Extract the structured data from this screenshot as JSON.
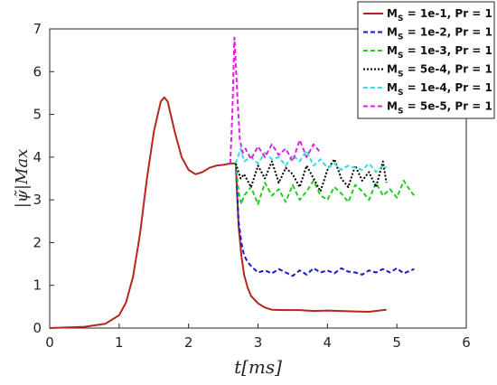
{
  "chart_data": {
    "type": "line",
    "xlabel": "t[ms]",
    "ylabel": "|ψ̃|Max",
    "xlim": [
      0,
      6
    ],
    "ylim": [
      0,
      7
    ],
    "xticks": [
      "0",
      "1",
      "2",
      "3",
      "4",
      "5",
      "6"
    ],
    "yticks": [
      "0",
      "1",
      "2",
      "3",
      "4",
      "5",
      "6",
      "7"
    ],
    "grid": false,
    "legend_position": "top-right",
    "common_curve": {
      "x": [
        0,
        0.5,
        0.8,
        1.0,
        1.1,
        1.2,
        1.3,
        1.4,
        1.5,
        1.6,
        1.65,
        1.7,
        1.8,
        1.9,
        2.0,
        2.1,
        2.2,
        2.3,
        2.4,
        2.5,
        2.6,
        2.68
      ],
      "y": [
        0.0,
        0.03,
        0.1,
        0.3,
        0.6,
        1.2,
        2.2,
        3.5,
        4.6,
        5.3,
        5.4,
        5.3,
        4.6,
        4.0,
        3.7,
        3.6,
        3.65,
        3.75,
        3.8,
        3.82,
        3.85,
        3.85
      ]
    },
    "series": [
      {
        "name_prefix": "M",
        "name_sub": "S",
        "name_rest": " = 1e-1, Pr = 1",
        "color": "#b5261e",
        "dash": "",
        "x": [
          2.68,
          2.72,
          2.76,
          2.8,
          2.85,
          2.9,
          3.0,
          3.1,
          3.2,
          3.4,
          3.6,
          3.8,
          4.0,
          4.2,
          4.4,
          4.6,
          4.8,
          4.85
        ],
        "y": [
          3.85,
          2.4,
          1.7,
          1.25,
          0.95,
          0.75,
          0.58,
          0.48,
          0.43,
          0.42,
          0.42,
          0.4,
          0.41,
          0.4,
          0.39,
          0.38,
          0.42,
          0.43
        ]
      },
      {
        "name_prefix": "M",
        "name_sub": "S",
        "name_rest": " = 1e-2, Pr = 1",
        "color": "#1a1acc",
        "dash": "5,3",
        "x": [
          2.68,
          2.72,
          2.76,
          2.8,
          2.85,
          2.9,
          3.0,
          3.1,
          3.2,
          3.3,
          3.4,
          3.5,
          3.6,
          3.7,
          3.8,
          3.9,
          4.0,
          4.1,
          4.2,
          4.3,
          4.4,
          4.5,
          4.6,
          4.7,
          4.8,
          4.9,
          5.0,
          5.1,
          5.2,
          5.25
        ],
        "y": [
          3.85,
          2.5,
          2.0,
          1.7,
          1.55,
          1.45,
          1.3,
          1.35,
          1.28,
          1.38,
          1.3,
          1.22,
          1.35,
          1.25,
          1.4,
          1.3,
          1.35,
          1.28,
          1.4,
          1.32,
          1.3,
          1.25,
          1.35,
          1.3,
          1.38,
          1.3,
          1.4,
          1.28,
          1.35,
          1.38
        ]
      },
      {
        "name_prefix": "M",
        "name_sub": "S",
        "name_rest": " = 1e-3, Pr = 1",
        "color": "#22cc22",
        "dash": "5,3",
        "x": [
          2.68,
          2.72,
          2.76,
          2.8,
          2.9,
          3.0,
          3.1,
          3.2,
          3.3,
          3.4,
          3.5,
          3.6,
          3.7,
          3.8,
          3.9,
          4.0,
          4.1,
          4.2,
          4.3,
          4.4,
          4.5,
          4.6,
          4.7,
          4.8,
          4.9,
          5.0,
          5.1,
          5.2,
          5.25
        ],
        "y": [
          3.85,
          3.2,
          2.9,
          3.1,
          3.3,
          2.9,
          3.4,
          3.1,
          3.25,
          2.95,
          3.35,
          3.0,
          3.2,
          3.45,
          3.1,
          3.0,
          3.3,
          3.15,
          2.95,
          3.35,
          3.2,
          3.0,
          3.4,
          3.1,
          3.25,
          3.05,
          3.45,
          3.2,
          3.1
        ]
      },
      {
        "name_prefix": "M",
        "name_sub": "S",
        "name_rest": " = 5e-4, Pr = 1",
        "color": "#000000",
        "dash": "2,2",
        "x": [
          2.68,
          2.75,
          2.8,
          2.9,
          3.0,
          3.1,
          3.2,
          3.3,
          3.4,
          3.5,
          3.6,
          3.7,
          3.8,
          3.9,
          4.0,
          4.1,
          4.2,
          4.3,
          4.4,
          4.5,
          4.6,
          4.7,
          4.8,
          4.85
        ],
        "y": [
          3.85,
          3.5,
          3.6,
          3.3,
          3.8,
          3.5,
          3.9,
          3.4,
          3.75,
          3.6,
          3.3,
          3.8,
          3.5,
          3.2,
          3.7,
          3.95,
          3.5,
          3.3,
          3.8,
          3.45,
          3.65,
          3.3,
          3.9,
          3.4
        ]
      },
      {
        "name_prefix": "M",
        "name_sub": "S",
        "name_rest": " = 1e-4, Pr = 1",
        "color": "#33dddd",
        "dash": "5,3",
        "x": [
          2.68,
          2.75,
          2.8,
          2.9,
          3.0,
          3.1,
          3.2,
          3.3,
          3.4,
          3.5,
          3.6,
          3.7,
          3.8,
          3.9,
          4.0,
          4.1,
          4.2,
          4.3,
          4.4,
          4.5,
          4.6,
          4.7,
          4.8,
          4.85
        ],
        "y": [
          3.85,
          4.2,
          3.9,
          4.0,
          3.85,
          4.1,
          3.95,
          4.0,
          3.8,
          4.05,
          3.9,
          4.15,
          3.8,
          3.95,
          3.75,
          3.85,
          3.7,
          3.8,
          3.75,
          3.7,
          3.85,
          3.65,
          3.8,
          3.75
        ]
      },
      {
        "name_prefix": "M",
        "name_sub": "S",
        "name_rest": " = 5e-5, Pr = 1",
        "color": "#dd22dd",
        "dash": "5,3",
        "x": [
          2.6,
          2.63,
          2.66,
          2.68,
          2.71,
          2.74,
          2.78,
          2.82,
          2.9,
          3.0,
          3.1,
          3.2,
          3.3,
          3.4,
          3.5,
          3.6,
          3.7,
          3.8,
          3.9
        ],
        "y": [
          3.85,
          5.0,
          6.8,
          6.2,
          5.2,
          4.4,
          4.1,
          4.2,
          3.95,
          4.25,
          4.0,
          4.3,
          4.05,
          4.2,
          3.9,
          4.4,
          4.0,
          4.3,
          4.1
        ]
      }
    ]
  }
}
